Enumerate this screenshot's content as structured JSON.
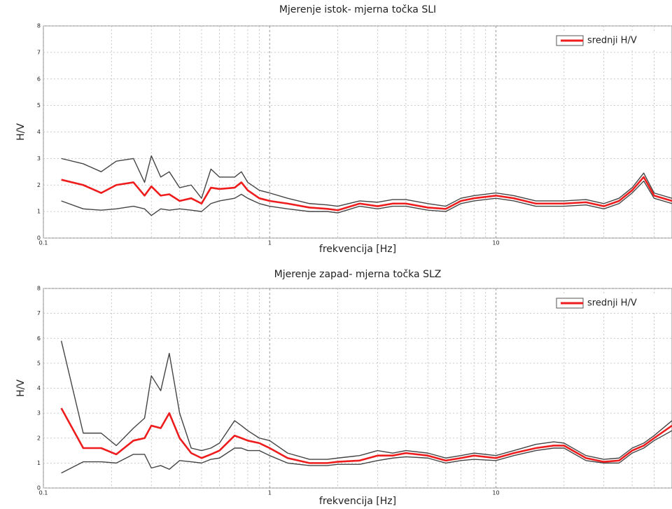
{
  "chart_data": [
    {
      "type": "line",
      "title": "Mjerenje istok- mjerna točka SLI",
      "xlabel": "frekvencija [Hz]",
      "ylabel": "H/V",
      "log_x": true,
      "grid": true,
      "legend": "upper-right",
      "xlim": [
        0.1,
        60
      ],
      "ylim": [
        0,
        8
      ],
      "xticks": [
        0.1,
        1,
        10
      ],
      "yticks": [
        0,
        1,
        2,
        3,
        4,
        5,
        6,
        7,
        8
      ],
      "x": [
        0.12,
        0.15,
        0.18,
        0.21,
        0.25,
        0.28,
        0.3,
        0.33,
        0.36,
        0.4,
        0.45,
        0.5,
        0.55,
        0.6,
        0.7,
        0.75,
        0.8,
        0.9,
        1.0,
        1.2,
        1.5,
        1.8,
        2,
        2.5,
        3,
        3.5,
        4,
        5,
        6,
        7,
        8,
        10,
        12,
        15,
        18,
        20,
        25,
        30,
        35,
        40,
        45,
        50,
        60
      ],
      "series": [
        {
          "color": "#444444",
          "values": [
            3.0,
            2.8,
            2.5,
            2.9,
            3.0,
            2.1,
            3.1,
            2.3,
            2.5,
            1.9,
            2.0,
            1.5,
            2.6,
            2.3,
            2.3,
            2.5,
            2.1,
            1.8,
            1.7,
            1.5,
            1.3,
            1.25,
            1.2,
            1.4,
            1.35,
            1.45,
            1.45,
            1.3,
            1.2,
            1.5,
            1.6,
            1.7,
            1.6,
            1.4,
            1.4,
            1.4,
            1.45,
            1.3,
            1.5,
            1.9,
            2.45,
            1.7,
            1.5
          ]
        },
        {
          "color": "#444444",
          "values": [
            1.4,
            1.1,
            1.05,
            1.1,
            1.2,
            1.1,
            0.85,
            1.1,
            1.05,
            1.1,
            1.05,
            1.0,
            1.3,
            1.4,
            1.5,
            1.65,
            1.5,
            1.3,
            1.2,
            1.1,
            1.0,
            1.0,
            0.95,
            1.2,
            1.1,
            1.2,
            1.2,
            1.05,
            1.0,
            1.3,
            1.4,
            1.5,
            1.4,
            1.2,
            1.2,
            1.2,
            1.25,
            1.1,
            1.3,
            1.7,
            2.15,
            1.5,
            1.3
          ]
        },
        {
          "name": "srednji H/V",
          "color": "#ee1c1c",
          "values": [
            2.2,
            2.0,
            1.7,
            2.0,
            2.1,
            1.6,
            1.95,
            1.6,
            1.65,
            1.4,
            1.5,
            1.3,
            1.9,
            1.85,
            1.9,
            2.1,
            1.8,
            1.5,
            1.4,
            1.3,
            1.15,
            1.1,
            1.05,
            1.3,
            1.2,
            1.3,
            1.3,
            1.15,
            1.1,
            1.4,
            1.5,
            1.6,
            1.5,
            1.3,
            1.3,
            1.3,
            1.35,
            1.2,
            1.4,
            1.8,
            2.3,
            1.6,
            1.4
          ]
        }
      ]
    },
    {
      "type": "line",
      "title": "Mjerenje zapad- mjerna točka SLZ",
      "xlabel": "frekvencija [Hz]",
      "ylabel": "H/V",
      "log_x": true,
      "grid": true,
      "legend": "upper-right",
      "xlim": [
        0.1,
        60
      ],
      "ylim": [
        0,
        8
      ],
      "xticks": [
        0.1,
        1,
        10
      ],
      "yticks": [
        0,
        1,
        2,
        3,
        4,
        5,
        6,
        7,
        8
      ],
      "x": [
        0.12,
        0.15,
        0.18,
        0.21,
        0.25,
        0.28,
        0.3,
        0.33,
        0.36,
        0.4,
        0.45,
        0.5,
        0.55,
        0.6,
        0.7,
        0.75,
        0.8,
        0.9,
        1.0,
        1.2,
        1.5,
        1.8,
        2,
        2.5,
        3,
        3.5,
        4,
        5,
        6,
        7,
        8,
        10,
        12,
        15,
        18,
        20,
        25,
        30,
        35,
        40,
        45,
        50,
        60
      ],
      "series": [
        {
          "color": "#444444",
          "values": [
            5.9,
            2.2,
            2.2,
            1.7,
            2.4,
            2.8,
            4.5,
            3.9,
            5.4,
            3.0,
            1.6,
            1.5,
            1.6,
            1.8,
            2.7,
            2.5,
            2.3,
            2.0,
            1.9,
            1.4,
            1.15,
            1.15,
            1.2,
            1.3,
            1.5,
            1.4,
            1.5,
            1.4,
            1.2,
            1.3,
            1.4,
            1.3,
            1.5,
            1.75,
            1.85,
            1.8,
            1.3,
            1.15,
            1.2,
            1.6,
            1.8,
            2.1,
            2.7
          ]
        },
        {
          "color": "#444444",
          "values": [
            0.6,
            1.05,
            1.05,
            1.0,
            1.35,
            1.35,
            0.8,
            0.9,
            0.75,
            1.1,
            1.05,
            1.0,
            1.15,
            1.2,
            1.6,
            1.6,
            1.5,
            1.5,
            1.3,
            1.0,
            0.9,
            0.9,
            0.95,
            0.95,
            1.1,
            1.2,
            1.25,
            1.2,
            1.0,
            1.1,
            1.15,
            1.1,
            1.3,
            1.5,
            1.6,
            1.6,
            1.1,
            1.0,
            1.0,
            1.4,
            1.6,
            1.9,
            2.3
          ]
        },
        {
          "name": "srednji H/V",
          "color": "#ee1c1c",
          "values": [
            3.2,
            1.6,
            1.6,
            1.35,
            1.9,
            2.0,
            2.5,
            2.4,
            3.0,
            2.0,
            1.4,
            1.2,
            1.35,
            1.5,
            2.1,
            2.0,
            1.9,
            1.8,
            1.6,
            1.2,
            1.0,
            1.0,
            1.05,
            1.1,
            1.3,
            1.3,
            1.4,
            1.3,
            1.1,
            1.2,
            1.3,
            1.2,
            1.4,
            1.6,
            1.7,
            1.7,
            1.2,
            1.05,
            1.1,
            1.5,
            1.7,
            2.0,
            2.5
          ]
        }
      ]
    }
  ]
}
